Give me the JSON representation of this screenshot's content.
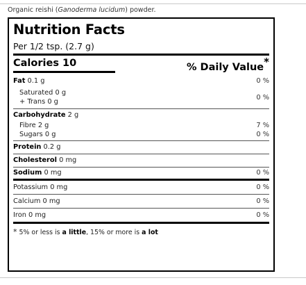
{
  "caption": {
    "prefix": "Organic reishi (",
    "species": "Ganoderma lucidum",
    "suffix": ") powder."
  },
  "label": {
    "title": "Nutrition Facts",
    "serving": "Per 1/2 tsp. (2.7 g)",
    "calories_label": "Calories 10",
    "dv_header": "% Daily Value",
    "dv_star": "*",
    "fat": {
      "name": "Fat",
      "amount": "0.1 g",
      "dv": "0 %"
    },
    "saturated": {
      "name": "Saturated 0 g"
    },
    "trans": {
      "name": "+ Trans 0 g"
    },
    "sat_trans_dv": "0 %",
    "carbohydrate": {
      "name": "Carbohydrate",
      "amount": "2 g"
    },
    "fibre": {
      "name": "Fibre 2 g",
      "dv": "7 %"
    },
    "sugars": {
      "name": "Sugars 0 g",
      "dv": "0 %"
    },
    "protein": {
      "name": "Protein",
      "amount": "0.2 g"
    },
    "cholesterol": {
      "name": "Cholesterol",
      "amount": "0 mg"
    },
    "sodium": {
      "name": "Sodium",
      "amount": "0 mg",
      "dv": "0 %"
    },
    "potassium": {
      "name": "Potassium 0 mg",
      "dv": "0 %"
    },
    "calcium": {
      "name": "Calcium 0 mg",
      "dv": "0 %"
    },
    "iron": {
      "name": "Iron 0 mg",
      "dv": "0 %"
    },
    "footnote": {
      "star": "*",
      "part1": " 5% or less is ",
      "little": "a little",
      "part2": ", 15% or more is ",
      "lot": "a lot"
    }
  }
}
